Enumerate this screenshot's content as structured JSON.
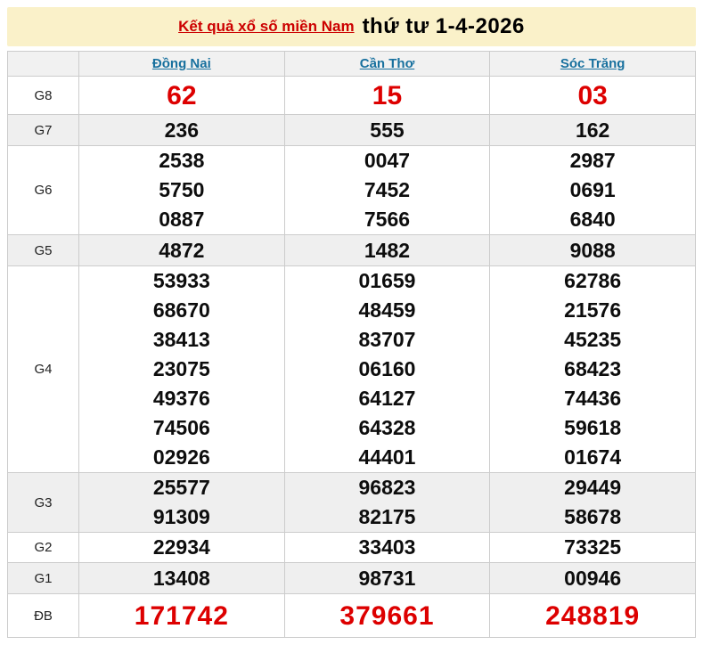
{
  "header": {
    "title": "Kết quả xổ số miền Nam",
    "date": "thứ tư 1-4-2026"
  },
  "table": {
    "columns": [
      "Đồng Nai",
      "Cần Thơ",
      "Sóc Trăng"
    ],
    "rows": [
      {
        "label": "G8",
        "values": [
          [
            "62"
          ],
          [
            "15"
          ],
          [
            "03"
          ]
        ]
      },
      {
        "label": "G7",
        "values": [
          [
            "236"
          ],
          [
            "555"
          ],
          [
            "162"
          ]
        ]
      },
      {
        "label": "G6",
        "values": [
          [
            "2538",
            "5750",
            "0887"
          ],
          [
            "0047",
            "7452",
            "7566"
          ],
          [
            "2987",
            "0691",
            "6840"
          ]
        ]
      },
      {
        "label": "G5",
        "values": [
          [
            "4872"
          ],
          [
            "1482"
          ],
          [
            "9088"
          ]
        ]
      },
      {
        "label": "G4",
        "values": [
          [
            "53933",
            "68670",
            "38413",
            "23075",
            "49376",
            "74506",
            "02926"
          ],
          [
            "01659",
            "48459",
            "83707",
            "06160",
            "64127",
            "64328",
            "44401"
          ],
          [
            "62786",
            "21576",
            "45235",
            "68423",
            "74436",
            "59618",
            "01674"
          ]
        ]
      },
      {
        "label": "G3",
        "values": [
          [
            "25577",
            "91309"
          ],
          [
            "96823",
            "82175"
          ],
          [
            "29449",
            "58678"
          ]
        ]
      },
      {
        "label": "G2",
        "values": [
          [
            "22934"
          ],
          [
            "33403"
          ],
          [
            "73325"
          ]
        ]
      },
      {
        "label": "G1",
        "values": [
          [
            "13408"
          ],
          [
            "98731"
          ],
          [
            "00946"
          ]
        ]
      },
      {
        "label": "ĐB",
        "values": [
          [
            "171742"
          ],
          [
            "379661"
          ],
          [
            "248819"
          ]
        ]
      }
    ]
  },
  "colors": {
    "banner_bg": "#FAF1C9",
    "title_red": "#CC0000",
    "link_blue": "#17709E",
    "number_red": "#DD0000",
    "stripe_gray": "#EFEFEF",
    "border_gray": "#CCCCCC"
  }
}
